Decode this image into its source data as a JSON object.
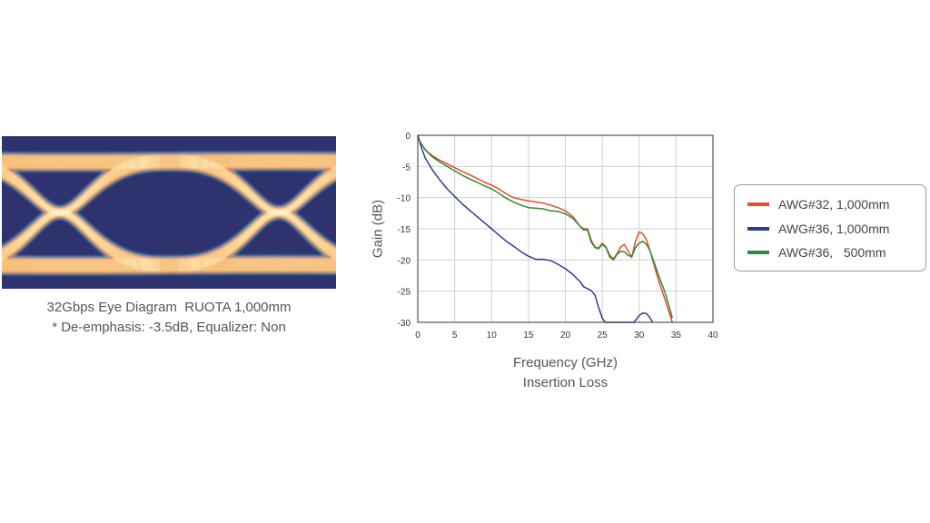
{
  "eye_diagram": {
    "caption_line1": "32Gbps Eye Diagram  RUOTA 1,000mm",
    "caption_line2": "* De-emphasis: -3.5dB, Equalizer: Non",
    "colors": {
      "background": "#2e3370",
      "outer": "#3fb3bf",
      "mid": "#e8452c",
      "hot": "#f6b24a",
      "core": "#fff7d6"
    }
  },
  "chart_data": {
    "type": "line",
    "title": "",
    "subtitle": "Insertion Loss",
    "xlabel": "Frequency (GHz)",
    "ylabel": "Gain (dB)",
    "xlim": [
      0,
      40
    ],
    "ylim": [
      -30,
      0
    ],
    "xticks": [
      0,
      5,
      10,
      15,
      20,
      25,
      30,
      35,
      40
    ],
    "yticks": [
      0,
      -5,
      -10,
      -15,
      -20,
      -25,
      -30
    ],
    "grid": true,
    "legend_position": "right",
    "series": [
      {
        "name": "AWG#32, 1,000mm",
        "color": "#e84a2a",
        "x": [
          0,
          0.3,
          1,
          2,
          3,
          4,
          5,
          6,
          7,
          8,
          9,
          10,
          11,
          12,
          13,
          14,
          15,
          16,
          17,
          18,
          19,
          20,
          21,
          22,
          22.5,
          23,
          23.5,
          24,
          24.5,
          25,
          25.5,
          26,
          26.5,
          27,
          27.5,
          28,
          28.5,
          29,
          29.5,
          30,
          30.5,
          31,
          31.5,
          32,
          32.5,
          33,
          33.5,
          34,
          34.5
        ],
        "y": [
          0,
          -1,
          -2.3,
          -3.3,
          -4.0,
          -4.6,
          -5.2,
          -5.8,
          -6.3,
          -6.9,
          -7.5,
          -8.0,
          -8.6,
          -9.4,
          -10.0,
          -10.3,
          -10.5,
          -10.7,
          -10.9,
          -11.2,
          -11.6,
          -12.1,
          -13.0,
          -14.6,
          -15.0,
          -15.0,
          -16.8,
          -17.9,
          -18.1,
          -17.3,
          -17.9,
          -19.2,
          -19.8,
          -19.0,
          -17.9,
          -17.5,
          -18.6,
          -19.6,
          -17.0,
          -15.5,
          -15.8,
          -16.8,
          -18.6,
          -20.7,
          -22.8,
          -24.6,
          -26.3,
          -28.2,
          -30
        ]
      },
      {
        "name": "AWG#36, 1,000mm",
        "color": "#2c3d94",
        "x": [
          0,
          0.5,
          1,
          2,
          3,
          4,
          5,
          6,
          7,
          8,
          9,
          10,
          11,
          12,
          13,
          14,
          15,
          16,
          17,
          18,
          19,
          20,
          21,
          22,
          22.5,
          23,
          23.5,
          24,
          24.5,
          25,
          25.4,
          29.3,
          30,
          30.5,
          31,
          31.5,
          31.8
        ],
        "y": [
          0,
          -2,
          -3.6,
          -5.6,
          -7.2,
          -8.6,
          -9.8,
          -11.0,
          -12.0,
          -13.0,
          -14.0,
          -15.0,
          -16.0,
          -17.0,
          -17.8,
          -18.7,
          -19.4,
          -19.9,
          -19.9,
          -20.1,
          -20.7,
          -21.4,
          -22.3,
          -23.5,
          -24.3,
          -24.6,
          -24.9,
          -25.6,
          -27.6,
          -29.3,
          -30,
          -30,
          -28.9,
          -28.5,
          -28.6,
          -29.3,
          -30
        ]
      },
      {
        "name": "AWG#36,   500mm",
        "color": "#2e8a3e",
        "x": [
          0,
          0.3,
          1,
          2,
          3,
          4,
          5,
          6,
          7,
          8,
          9,
          10,
          11,
          12,
          13,
          14,
          15,
          16,
          17,
          18,
          19,
          20,
          21,
          22,
          22.5,
          23,
          23.5,
          24,
          24.5,
          25,
          25.5,
          26,
          26.5,
          27,
          27.5,
          28,
          28.5,
          29,
          29.5,
          30,
          30.5,
          31,
          31.5,
          32,
          32.5,
          33,
          33.5,
          34,
          34.5
        ],
        "y": [
          0,
          -1,
          -2.3,
          -3.5,
          -4.3,
          -5.0,
          -5.7,
          -6.4,
          -7.0,
          -7.5,
          -8.1,
          -8.6,
          -9.3,
          -10.1,
          -10.7,
          -11.2,
          -11.6,
          -11.7,
          -11.8,
          -12.1,
          -12.2,
          -12.6,
          -13.3,
          -14.6,
          -15.2,
          -15.2,
          -17.1,
          -18.0,
          -18.2,
          -17.5,
          -18.0,
          -19.5,
          -20.0,
          -19.1,
          -18.6,
          -18.7,
          -19.3,
          -19.4,
          -18.0,
          -17.3,
          -17.0,
          -17.5,
          -18.6,
          -20.3,
          -22.0,
          -23.6,
          -25.2,
          -27.2,
          -29.3
        ]
      }
    ]
  }
}
